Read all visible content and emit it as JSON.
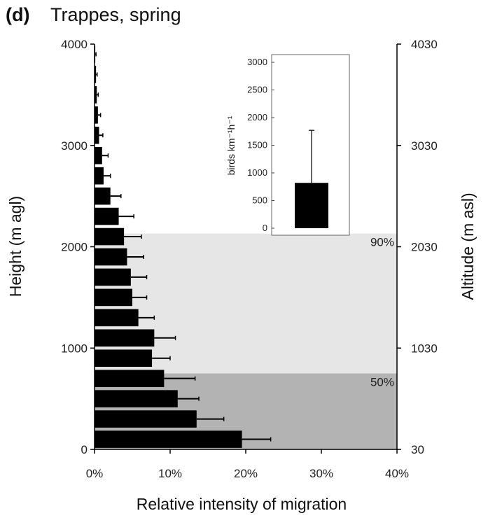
{
  "chart_data": [
    {
      "type": "bar",
      "orientation": "horizontal",
      "panel_label": "(d)",
      "title": "Trappes, spring",
      "xlabel": "Relative intensity of migration",
      "ylabel": "Height (m agl)",
      "y2label": "Altitude (m asl)",
      "xlim": [
        0,
        40
      ],
      "ylim": [
        0,
        4000
      ],
      "x_ticks": [
        "0%",
        "10%",
        "20%",
        "30%",
        "40%"
      ],
      "y_ticks": [
        "0",
        "1000",
        "2000",
        "3000",
        "4000"
      ],
      "y2_ticks": [
        "30",
        "1030",
        "2030",
        "3030",
        "4030"
      ],
      "bands": [
        {
          "label": "50%",
          "from": 0,
          "to": 750,
          "color": "#b3b3b3"
        },
        {
          "label": "90%",
          "from": 750,
          "to": 2130,
          "color": "#e6e6e6"
        }
      ],
      "heights": [
        100,
        300,
        500,
        700,
        900,
        1100,
        1300,
        1500,
        1700,
        1900,
        2100,
        2300,
        2500,
        2700,
        2900,
        3100,
        3300,
        3500,
        3700,
        3900
      ],
      "values": [
        19.5,
        13.5,
        11.0,
        9.2,
        7.6,
        7.9,
        5.8,
        5.0,
        4.8,
        4.3,
        3.9,
        3.2,
        2.1,
        1.2,
        1.0,
        0.6,
        0.45,
        0.3,
        0.2,
        0.1
      ],
      "errors": [
        3.8,
        3.6,
        2.8,
        4.1,
        2.4,
        2.8,
        2.1,
        1.9,
        2.1,
        2.2,
        2.3,
        2.0,
        1.4,
        0.9,
        0.8,
        0.5,
        0.35,
        0.2,
        0.15,
        0.1
      ],
      "bar_color": "#000000"
    },
    {
      "type": "bar",
      "role": "inset",
      "ylabel": "birds km⁻¹h⁻¹",
      "ylim": [
        0,
        3000
      ],
      "y_ticks": [
        "0",
        "500",
        "1000",
        "1500",
        "2000",
        "2500",
        "3000"
      ],
      "values": [
        820
      ],
      "errors": [
        950
      ],
      "bar_color": "#000000"
    }
  ]
}
